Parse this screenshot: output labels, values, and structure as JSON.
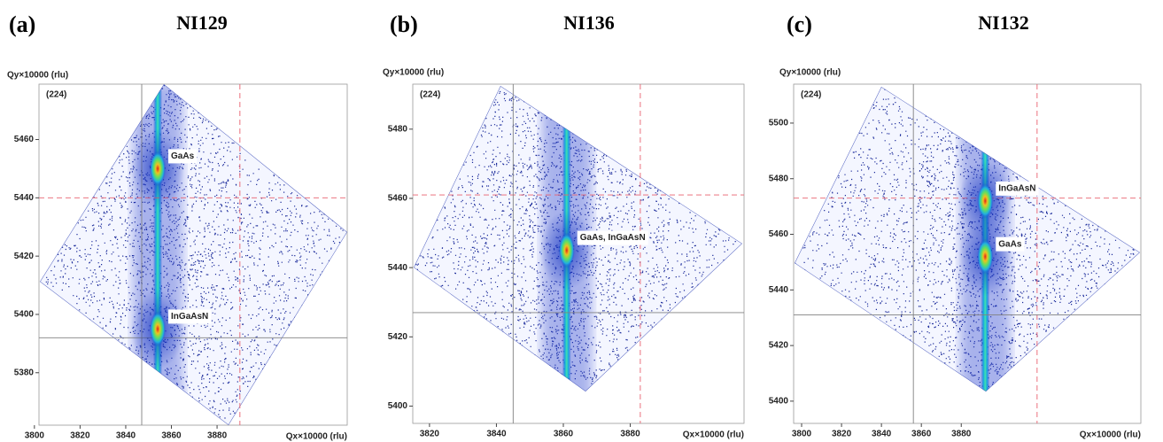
{
  "chart_data": [
    {
      "type": "rsm",
      "panel": "(a)",
      "title": "NI129",
      "reflection": "(224)",
      "x_label": "Qx×10000 (rlu)",
      "y_label": "Qy×10000 (rlu)",
      "xlim": [
        3802,
        3937
      ],
      "ylim": [
        5362,
        5479
      ],
      "xticks": [
        3800,
        3820,
        3840,
        3860,
        3880
      ],
      "yticks": [
        5380,
        5400,
        5420,
        5440,
        5460
      ],
      "peaks": [
        {
          "label": "GaAs",
          "x": 3854,
          "y": 5450
        },
        {
          "label": "InGaAsN",
          "x": 3854,
          "y": 5395
        }
      ],
      "markers": [
        {
          "x": 3890,
          "y": 5440,
          "color": "#e8606e",
          "dashed": true
        },
        {
          "x": 3847,
          "y": 5392,
          "color": "#808080",
          "dashed": false
        }
      ]
    },
    {
      "type": "rsm",
      "panel": "(b)",
      "title": "NI136",
      "reflection": "(224)",
      "x_label": "Qx×10000 (rlu)",
      "y_label": "Qy×10000 (rlu)",
      "xlim": [
        3815,
        3914
      ],
      "ylim": [
        5395,
        5493
      ],
      "xticks": [
        3820,
        3840,
        3860,
        3880
      ],
      "yticks": [
        5400,
        5420,
        5440,
        5460,
        5480
      ],
      "peaks": [
        {
          "label": "GaAs,  InGaAsN",
          "x": 3861,
          "y": 5445
        }
      ],
      "markers": [
        {
          "x": 3883,
          "y": 5461,
          "color": "#e8606e",
          "dashed": true
        },
        {
          "x": 3845,
          "y": 5427,
          "color": "#808080",
          "dashed": false
        }
      ]
    },
    {
      "type": "rsm",
      "panel": "(c)",
      "title": "NI132",
      "reflection": "(224)",
      "x_label": "Qx×10000 (rlu)",
      "y_label": "Qy×10000 (rlu)",
      "xlim": [
        3796,
        3970
      ],
      "ylim": [
        5392,
        5514
      ],
      "xticks": [
        3800,
        3820,
        3840,
        3860,
        3880
      ],
      "yticks": [
        5400,
        5420,
        5440,
        5460,
        5480,
        5500
      ],
      "peaks": [
        {
          "label": "InGaAsN",
          "x": 3892,
          "y": 5472
        },
        {
          "label": "GaAs",
          "x": 3892,
          "y": 5452
        }
      ],
      "markers": [
        {
          "x": 3918,
          "y": 5473,
          "color": "#e8606e",
          "dashed": true
        },
        {
          "x": 3856,
          "y": 5431,
          "color": "#808080",
          "dashed": false
        }
      ]
    }
  ]
}
